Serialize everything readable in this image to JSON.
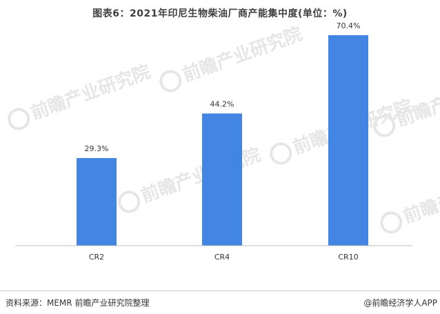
{
  "chart_data": {
    "type": "bar",
    "title": "图表6：2021年印尼生物柴油厂商产能集中度(单位：%)",
    "categories": [
      "CR2",
      "CR4",
      "CR10"
    ],
    "values": [
      29.3,
      44.2,
      70.4
    ],
    "value_labels": [
      "29.3%",
      "44.2%",
      "70.4%"
    ],
    "ylim": [
      0,
      72
    ],
    "grid": false,
    "bar_color": "#4285e3",
    "xlabel": "",
    "ylabel": ""
  },
  "footer": {
    "source": "资料来源：MEMR 前瞻产业研究院整理",
    "brand": "@前瞻经济学人APP"
  },
  "watermark": {
    "text": "前瞻产业研究院",
    "color": "#e6e6e6"
  }
}
